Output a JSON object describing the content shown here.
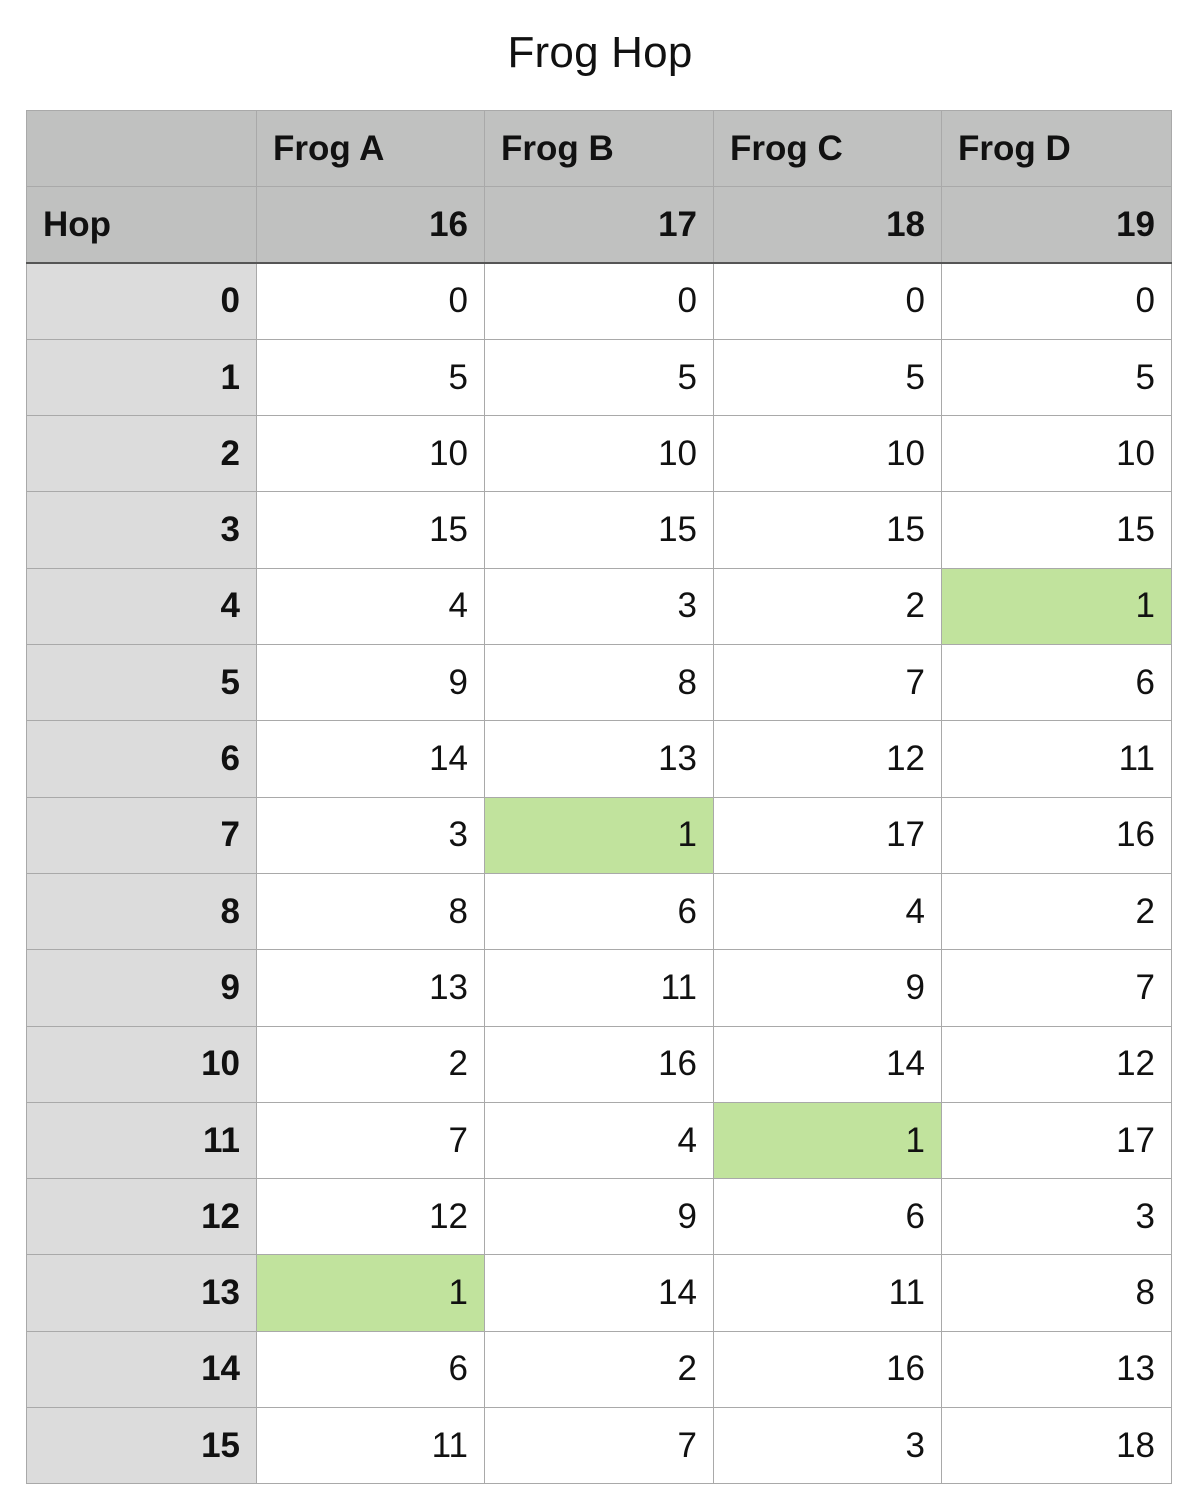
{
  "title": "Frog Hop",
  "colors": {
    "header_bg": "#c0c1c0",
    "row_header_bg": "#dcdcdc",
    "highlight": "#c1e39d"
  },
  "table": {
    "corner_label": "",
    "hop_label": "Hop",
    "columns": [
      {
        "name": "Frog A",
        "modulus": "16"
      },
      {
        "name": "Frog B",
        "modulus": "17"
      },
      {
        "name": "Frog C",
        "modulus": "18"
      },
      {
        "name": "Frog D",
        "modulus": "19"
      }
    ],
    "rows": [
      {
        "hop": "0",
        "values": [
          "0",
          "0",
          "0",
          "0"
        ],
        "highlight": [
          false,
          false,
          false,
          false
        ]
      },
      {
        "hop": "1",
        "values": [
          "5",
          "5",
          "5",
          "5"
        ],
        "highlight": [
          false,
          false,
          false,
          false
        ]
      },
      {
        "hop": "2",
        "values": [
          "10",
          "10",
          "10",
          "10"
        ],
        "highlight": [
          false,
          false,
          false,
          false
        ]
      },
      {
        "hop": "3",
        "values": [
          "15",
          "15",
          "15",
          "15"
        ],
        "highlight": [
          false,
          false,
          false,
          false
        ]
      },
      {
        "hop": "4",
        "values": [
          "4",
          "3",
          "2",
          "1"
        ],
        "highlight": [
          false,
          false,
          false,
          true
        ]
      },
      {
        "hop": "5",
        "values": [
          "9",
          "8",
          "7",
          "6"
        ],
        "highlight": [
          false,
          false,
          false,
          false
        ]
      },
      {
        "hop": "6",
        "values": [
          "14",
          "13",
          "12",
          "11"
        ],
        "highlight": [
          false,
          false,
          false,
          false
        ]
      },
      {
        "hop": "7",
        "values": [
          "3",
          "1",
          "17",
          "16"
        ],
        "highlight": [
          false,
          true,
          false,
          false
        ]
      },
      {
        "hop": "8",
        "values": [
          "8",
          "6",
          "4",
          "2"
        ],
        "highlight": [
          false,
          false,
          false,
          false
        ]
      },
      {
        "hop": "9",
        "values": [
          "13",
          "11",
          "9",
          "7"
        ],
        "highlight": [
          false,
          false,
          false,
          false
        ]
      },
      {
        "hop": "10",
        "values": [
          "2",
          "16",
          "14",
          "12"
        ],
        "highlight": [
          false,
          false,
          false,
          false
        ]
      },
      {
        "hop": "11",
        "values": [
          "7",
          "4",
          "1",
          "17"
        ],
        "highlight": [
          false,
          false,
          true,
          false
        ]
      },
      {
        "hop": "12",
        "values": [
          "12",
          "9",
          "6",
          "3"
        ],
        "highlight": [
          false,
          false,
          false,
          false
        ]
      },
      {
        "hop": "13",
        "values": [
          "1",
          "14",
          "11",
          "8"
        ],
        "highlight": [
          true,
          false,
          false,
          false
        ]
      },
      {
        "hop": "14",
        "values": [
          "6",
          "2",
          "16",
          "13"
        ],
        "highlight": [
          false,
          false,
          false,
          false
        ]
      },
      {
        "hop": "15",
        "values": [
          "11",
          "7",
          "3",
          "18"
        ],
        "highlight": [
          false,
          false,
          false,
          false
        ]
      }
    ]
  }
}
